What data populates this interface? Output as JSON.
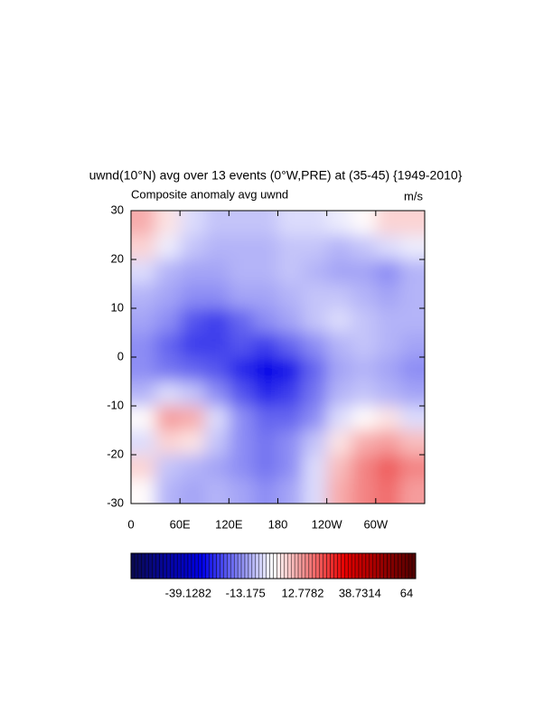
{
  "chart_data": {
    "type": "heatmap",
    "title": "uwnd(10°N) avg over 13 events (0°W,PRE) at (35-45) {1949-2010}",
    "subtitle_left": "Composite anomaly avg uwnd",
    "subtitle_right": "m/s",
    "x": [
      15,
      45,
      75,
      105,
      135,
      165,
      195,
      225,
      255,
      285,
      315,
      345
    ],
    "y": [
      27.5,
      22.5,
      17.5,
      12.5,
      7.5,
      2.5,
      -2.5,
      -7.5,
      -12.5,
      -17.5,
      -22.5,
      -27.5
    ],
    "z": [
      [
        10,
        3,
        -5,
        -8,
        -8,
        -8,
        -5,
        -5,
        -3,
        0,
        5,
        5
      ],
      [
        5,
        -3,
        -8,
        -10,
        -10,
        -10,
        -8,
        -8,
        -10,
        -8,
        -5,
        -3
      ],
      [
        -5,
        -10,
        -12,
        -12,
        -10,
        -10,
        -8,
        -10,
        -12,
        -12,
        -15,
        -10
      ],
      [
        -10,
        -12,
        -15,
        -15,
        -12,
        -12,
        -10,
        -8,
        -8,
        -10,
        -12,
        -10
      ],
      [
        -12,
        -15,
        -22,
        -25,
        -20,
        -15,
        -12,
        -8,
        -5,
        -8,
        -10,
        -10
      ],
      [
        -15,
        -20,
        -25,
        -25,
        -22,
        -25,
        -20,
        -15,
        -10,
        -8,
        -10,
        -12
      ],
      [
        -15,
        -18,
        -20,
        -22,
        -28,
        -32,
        -30,
        -20,
        -12,
        -10,
        -12,
        -15
      ],
      [
        -10,
        -5,
        -8,
        -15,
        -22,
        -28,
        -25,
        -18,
        -10,
        -8,
        -10,
        -12
      ],
      [
        0,
        12,
        10,
        -5,
        -15,
        -20,
        -20,
        -15,
        -5,
        0,
        3,
        -5
      ],
      [
        -5,
        5,
        3,
        -8,
        -15,
        -18,
        -15,
        -8,
        3,
        10,
        12,
        8
      ],
      [
        5,
        -8,
        -10,
        -12,
        -15,
        -18,
        -15,
        -5,
        8,
        15,
        20,
        15
      ],
      [
        0,
        -10,
        -12,
        -10,
        -12,
        -15,
        -12,
        -5,
        10,
        15,
        18,
        12
      ]
    ],
    "xlim": [
      0,
      360
    ],
    "xticks": [
      0,
      {
        "value": 60,
        "label": "60E"
      },
      {
        "value": 120,
        "label": "120E"
      },
      180,
      {
        "value": 240,
        "label": "120W"
      },
      {
        "value": 300,
        "label": "60W"
      }
    ],
    "ylim": [
      -30,
      30
    ],
    "yticks": [
      -30,
      -20,
      -10,
      0,
      10,
      20,
      30
    ],
    "colormap": [
      "#0a0a50",
      "#0000e6",
      "#ffffff",
      "#e60000",
      "#500000"
    ],
    "clim": [
      -65.08,
      64
    ],
    "colorbar_ticks": [
      -39.1282,
      -13.175,
      12.7782,
      38.7314,
      64
    ]
  }
}
